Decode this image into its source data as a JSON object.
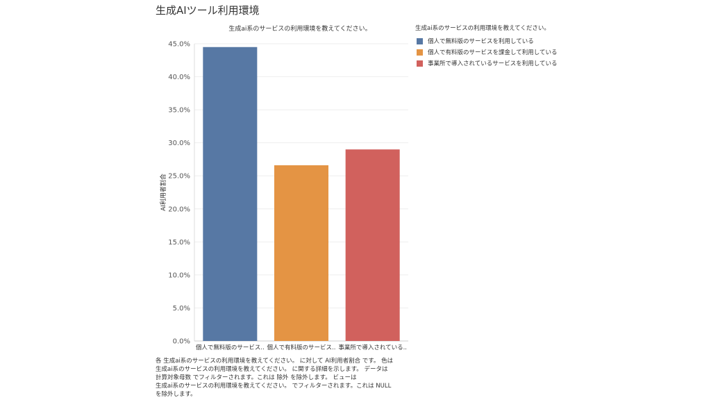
{
  "page_title": "生成AIツール利用環境",
  "chart_data": {
    "type": "bar",
    "title": "生成ai系のサービスの利用環境を教えてください。",
    "ylabel": "AI利用者割合",
    "xlabel": "",
    "ylim": [
      0,
      45
    ],
    "yticks": [
      "0.0%",
      "5.0%",
      "10.0%",
      "15.0%",
      "20.0%",
      "25.0%",
      "30.0%",
      "35.0%",
      "40.0%",
      "45.0%"
    ],
    "categories": [
      "個人で無料版のサービス..",
      "個人で有料版のサービス..",
      "事業所で導入されている.."
    ],
    "values": [
      44.5,
      26.6,
      29.0
    ],
    "colors": [
      "#5778a4",
      "#e49444",
      "#d1615d"
    ],
    "grid": true,
    "legend": {
      "title": "生成ai系のサービスの利用環境を教えてください。",
      "position": "right",
      "items": [
        {
          "label": "個人で無料版のサービスを利用している",
          "color": "#5778a4"
        },
        {
          "label": "個人で有料版のサービスを課金して利用している",
          "color": "#e49444"
        },
        {
          "label": "事業所で導入されているサービスを利用している",
          "color": "#d1615d"
        }
      ]
    }
  },
  "footnote": "各 生成ai系のサービスの利用環境を教えてください。 に対して AI利用者割合 です。 色は\n生成ai系のサービスの利用環境を教えてください。 に関する詳細を示します。 データは\n計算対象母数 でフィルターされます。これは 除外 を除外します。 ビューは\n生成ai系のサービスの利用環境を教えてください。 でフィルターされます。これは NULL\nを除外します。"
}
